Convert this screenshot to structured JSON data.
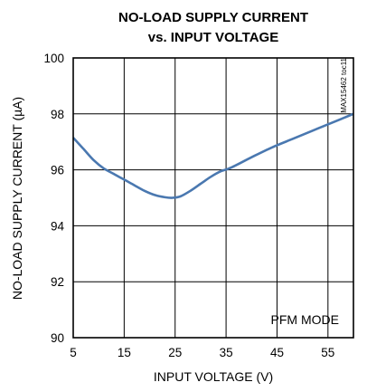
{
  "chart_data": {
    "type": "line",
    "title_line1": "NO-LOAD SUPPLY CURRENT",
    "title_line2": "vs. INPUT VOLTAGE",
    "xlabel": "INPUT VOLTAGE (V)",
    "ylabel": "NO-LOAD SUPPLY CURRENT (µA)",
    "xlim": [
      5,
      60
    ],
    "ylim": [
      90,
      100
    ],
    "xticks": [
      5,
      15,
      25,
      35,
      45,
      55
    ],
    "yticks": [
      90,
      92,
      94,
      96,
      98,
      100
    ],
    "grid": true,
    "annotation": "PFM MODE",
    "figure_code": "MAX15462 toc11",
    "line_color": "#4a78b0",
    "series": [
      {
        "x": [
          5,
          7,
          9,
          11,
          13,
          15,
          17,
          19,
          21,
          23,
          24.5,
          26,
          28,
          30,
          32,
          34,
          36,
          40,
          44,
          48,
          52,
          56,
          60
        ],
        "values": [
          97.15,
          96.75,
          96.35,
          96.05,
          95.85,
          95.65,
          95.45,
          95.25,
          95.1,
          95.02,
          95.0,
          95.05,
          95.25,
          95.5,
          95.75,
          95.95,
          96.08,
          96.45,
          96.8,
          97.1,
          97.4,
          97.7,
          98.0
        ]
      }
    ]
  }
}
